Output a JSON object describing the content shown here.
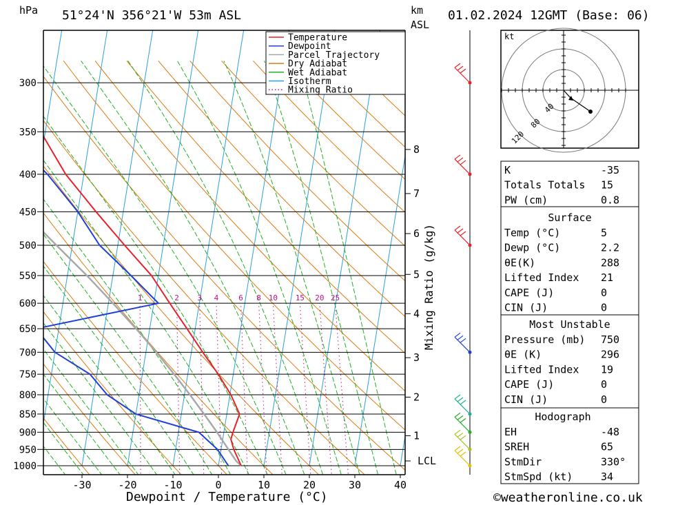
{
  "header": {
    "hpa_unit": "hPa",
    "location": "51°24'N 356°21'W 53m ASL",
    "km_unit": "km",
    "asl": "ASL",
    "datetime": "01.02.2024 12GMT (Base: 06)"
  },
  "colors": {
    "temperature": "#e8202a",
    "dewpoint": "#1f3fd8",
    "parcel": "#a8a8a8",
    "dry_adiabat": "#e07a10",
    "wet_adiabat": "#20b020",
    "isotherm": "#2aa0e0",
    "mixing_ratio": "#c0108a"
  },
  "legend": [
    {
      "label": "Temperature",
      "color": "#e8202a",
      "style": "solid"
    },
    {
      "label": "Dewpoint",
      "color": "#1f3fd8",
      "style": "solid"
    },
    {
      "label": "Parcel Trajectory",
      "color": "#a8a8a8",
      "style": "solid"
    },
    {
      "label": "Dry Adiabat",
      "color": "#e07a10",
      "style": "solid"
    },
    {
      "label": "Wet Adiabat",
      "color": "#20b020",
      "style": "solid"
    },
    {
      "label": "Isotherm",
      "color": "#2aa0e0",
      "style": "solid"
    },
    {
      "label": "Mixing Ratio",
      "color": "#c0108a",
      "style": "dotted"
    }
  ],
  "chart_data": {
    "type": "skew-t",
    "xlabel": "Dewpoint / Temperature (°C)",
    "ylabel_left": "hPa",
    "ylabel_right": "Mixing Ratio (g/kg)",
    "x_ticks": [
      "-30",
      "-20",
      "-10",
      "0",
      "10",
      "20",
      "30",
      "40"
    ],
    "x_tick_values": [
      -30,
      -20,
      -10,
      0,
      10,
      20,
      30,
      40
    ],
    "pressure_levels": [
      300,
      350,
      400,
      450,
      500,
      550,
      600,
      650,
      700,
      750,
      800,
      850,
      900,
      950,
      1000
    ],
    "pressure_labels": [
      "300",
      "350",
      "400",
      "450",
      "500",
      "550",
      "600",
      "650",
      "700",
      "750",
      "800",
      "850",
      "900",
      "950",
      "1000"
    ],
    "km_ticks": [
      {
        "label": "8",
        "p": 370
      },
      {
        "label": "7",
        "p": 425
      },
      {
        "label": "6",
        "p": 482
      },
      {
        "label": "5",
        "p": 548
      },
      {
        "label": "4",
        "p": 620
      },
      {
        "label": "3",
        "p": 712
      },
      {
        "label": "2",
        "p": 806
      },
      {
        "label": "1",
        "p": 910
      },
      {
        "label": "LCL",
        "p": 985
      }
    ],
    "mixing_ratio_labels": [
      "1",
      "2",
      "3",
      "4",
      "6",
      "8",
      "10",
      "15",
      "20",
      "25"
    ],
    "mixing_ratio_values": [
      1,
      2,
      3,
      4,
      6,
      8,
      10,
      15,
      20,
      25
    ],
    "temperature": [
      {
        "p": 1000,
        "t": 5
      },
      {
        "p": 950,
        "t": 2.8
      },
      {
        "p": 920,
        "t": 1.8
      },
      {
        "p": 900,
        "t": 2.0
      },
      {
        "p": 850,
        "t": 2.8
      },
      {
        "p": 800,
        "t": 0.2
      },
      {
        "p": 750,
        "t": -3.3
      },
      {
        "p": 700,
        "t": -7.5
      },
      {
        "p": 650,
        "t": -11.8
      },
      {
        "p": 600,
        "t": -16.5
      },
      {
        "p": 550,
        "t": -21.5
      },
      {
        "p": 500,
        "t": -28.5
      },
      {
        "p": 450,
        "t": -36
      },
      {
        "p": 400,
        "t": -44
      },
      {
        "p": 350,
        "t": -51
      },
      {
        "p": 300,
        "t": -56.5
      }
    ],
    "dewpoint": [
      {
        "p": 1000,
        "t": 2.2
      },
      {
        "p": 950,
        "t": -0.8
      },
      {
        "p": 900,
        "t": -5.5
      },
      {
        "p": 850,
        "t": -20
      },
      {
        "p": 800,
        "t": -27
      },
      {
        "p": 750,
        "t": -31.5
      },
      {
        "p": 700,
        "t": -40
      },
      {
        "p": 650,
        "t": -45
      },
      {
        "p": 600,
        "t": -19
      },
      {
        "p": 550,
        "t": -26
      },
      {
        "p": 500,
        "t": -34
      },
      {
        "p": 450,
        "t": -40
      },
      {
        "p": 400,
        "t": -48
      },
      {
        "p": 350,
        "t": -59
      },
      {
        "p": 300,
        "t": -67
      }
    ],
    "parcel": [
      {
        "p": 1000,
        "t": 5
      },
      {
        "p": 985,
        "t": 3.7
      },
      {
        "p": 900,
        "t": -1.5
      },
      {
        "p": 850,
        "t": -5
      },
      {
        "p": 800,
        "t": -8.8
      },
      {
        "p": 750,
        "t": -13
      },
      {
        "p": 700,
        "t": -17.7
      },
      {
        "p": 650,
        "t": -23
      },
      {
        "p": 600,
        "t": -29
      },
      {
        "p": 550,
        "t": -35.7
      },
      {
        "p": 500,
        "t": -43.5
      },
      {
        "p": 450,
        "t": -52
      },
      {
        "p": 400,
        "t": -61
      },
      {
        "p": 350,
        "t": -71
      },
      {
        "p": 300,
        "t": -82
      }
    ],
    "wind_barbs": [
      {
        "p": 300,
        "color": "#e8202a"
      },
      {
        "p": 400,
        "color": "#e8202a"
      },
      {
        "p": 500,
        "color": "#e8202a"
      },
      {
        "p": 700,
        "color": "#1f3fd8"
      },
      {
        "p": 850,
        "color": "#20b090"
      },
      {
        "p": 900,
        "color": "#20b020"
      },
      {
        "p": 950,
        "color": "#a8c020"
      },
      {
        "p": 1000,
        "color": "#e0c000"
      }
    ]
  },
  "hodograph": {
    "unit": "kt",
    "ring_labels": [
      "40",
      "80",
      "120"
    ]
  },
  "indices": {
    "top": [
      {
        "label": "K",
        "value": "-35"
      },
      {
        "label": "Totals Totals",
        "value": "15"
      },
      {
        "label": "PW (cm)",
        "value": "0.8"
      }
    ],
    "surface": {
      "title": "Surface",
      "rows": [
        {
          "label": "Temp (°C)",
          "value": "5"
        },
        {
          "label": "Dewp (°C)",
          "value": "2.2"
        },
        {
          "label": "θE(K)",
          "value": "288"
        },
        {
          "label": "Lifted Index",
          "value": "21"
        },
        {
          "label": "CAPE (J)",
          "value": "0"
        },
        {
          "label": "CIN (J)",
          "value": "0"
        }
      ]
    },
    "most_unstable": {
      "title": "Most Unstable",
      "rows": [
        {
          "label": "Pressure (mb)",
          "value": "750"
        },
        {
          "label": "θE (K)",
          "value": "296"
        },
        {
          "label": "Lifted Index",
          "value": "19"
        },
        {
          "label": "CAPE (J)",
          "value": "0"
        },
        {
          "label": "CIN (J)",
          "value": "0"
        }
      ]
    },
    "hodograph": {
      "title": "Hodograph",
      "rows": [
        {
          "label": "EH",
          "value": "-48"
        },
        {
          "label": "SREH",
          "value": "65"
        },
        {
          "label": "StmDir",
          "value": "330°"
        },
        {
          "label": "StmSpd (kt)",
          "value": "34"
        }
      ]
    }
  },
  "footer": {
    "copyright": "©weatheronline.co.uk"
  }
}
